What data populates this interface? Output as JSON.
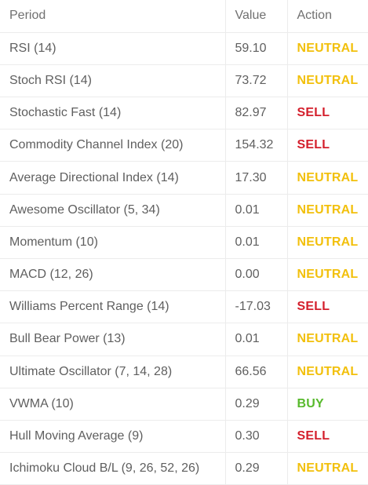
{
  "table": {
    "headers": {
      "period": "Period",
      "value": "Value",
      "action": "Action"
    },
    "action_colors": {
      "NEUTRAL": "#f2c00c",
      "SELL": "#d41f2c",
      "BUY": "#58ba2d"
    },
    "rows": [
      {
        "period": "RSI (14)",
        "value": "59.10",
        "action": "NEUTRAL"
      },
      {
        "period": "Stoch RSI (14)",
        "value": "73.72",
        "action": "NEUTRAL"
      },
      {
        "period": "Stochastic Fast (14)",
        "value": "82.97",
        "action": "SELL"
      },
      {
        "period": "Commodity Channel Index (20)",
        "value": "154.32",
        "action": "SELL"
      },
      {
        "period": "Average Directional Index (14)",
        "value": "17.30",
        "action": "NEUTRAL"
      },
      {
        "period": "Awesome Oscillator (5, 34)",
        "value": "0.01",
        "action": "NEUTRAL"
      },
      {
        "period": "Momentum (10)",
        "value": "0.01",
        "action": "NEUTRAL"
      },
      {
        "period": "MACD (12, 26)",
        "value": "0.00",
        "action": "NEUTRAL"
      },
      {
        "period": "Williams Percent Range (14)",
        "value": "-17.03",
        "action": "SELL"
      },
      {
        "period": "Bull Bear Power (13)",
        "value": "0.01",
        "action": "NEUTRAL"
      },
      {
        "period": "Ultimate Oscillator (7, 14, 28)",
        "value": "66.56",
        "action": "NEUTRAL"
      },
      {
        "period": "VWMA (10)",
        "value": "0.29",
        "action": "BUY"
      },
      {
        "period": "Hull Moving Average (9)",
        "value": "0.30",
        "action": "SELL"
      },
      {
        "period": "Ichimoku Cloud B/L (9, 26, 52, 26)",
        "value": "0.29",
        "action": "NEUTRAL"
      }
    ]
  }
}
